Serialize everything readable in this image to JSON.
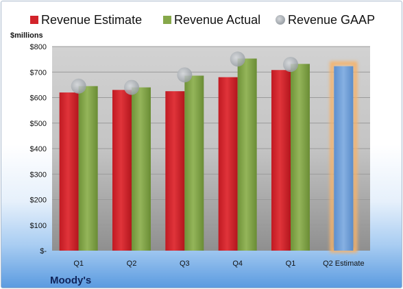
{
  "chart_data": {
    "type": "bar",
    "title": "",
    "company": "Moody's",
    "ylabel": "$millions",
    "ylim": [
      0,
      800
    ],
    "ytick_values": [
      0,
      100,
      200,
      300,
      400,
      500,
      600,
      700,
      800
    ],
    "ytick_labels": [
      "$-",
      "$100",
      "$200",
      "$300",
      "$400",
      "$500",
      "$600",
      "$700",
      "$800"
    ],
    "categories": [
      "Q1",
      "Q2",
      "Q3",
      "Q4",
      "Q1",
      "Q2 Estimate"
    ],
    "legend_position": "top",
    "grid": true,
    "series": [
      {
        "name": "Revenue Estimate",
        "type": "bar",
        "color": "#d2232a",
        "values": [
          620,
          630,
          625,
          680,
          708,
          null
        ]
      },
      {
        "name": "Revenue Actual",
        "type": "bar",
        "color": "#86a84a",
        "values": [
          645,
          640,
          686,
          753,
          732,
          null
        ]
      },
      {
        "name": "Revenue GAAP",
        "type": "scatter",
        "color": "#b4b8bc",
        "values": [
          645,
          640,
          689,
          751,
          730,
          null
        ]
      },
      {
        "name": "Q2 Estimate",
        "type": "bar",
        "color": "#6f9fd6",
        "highlight_color": "#f5b26b",
        "values": [
          null,
          null,
          null,
          null,
          null,
          723
        ]
      }
    ]
  }
}
